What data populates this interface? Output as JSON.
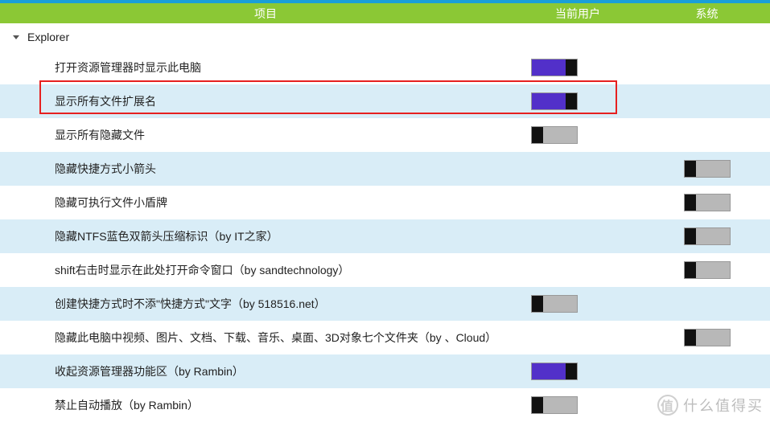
{
  "header": {
    "item": "项目",
    "currentUser": "当前用户",
    "system": "系统"
  },
  "group": {
    "name": "Explorer",
    "expanded": true
  },
  "rows": [
    {
      "label": "打开资源管理器时显示此电脑",
      "user": "on",
      "system": null,
      "alt": false
    },
    {
      "label": "显示所有文件扩展名",
      "user": "on",
      "system": null,
      "alt": true
    },
    {
      "label": "显示所有隐藏文件",
      "user": "off",
      "system": null,
      "alt": false
    },
    {
      "label": "隐藏快捷方式小箭头",
      "user": null,
      "system": "off",
      "alt": true
    },
    {
      "label": "隐藏可执行文件小盾牌",
      "user": null,
      "system": "off",
      "alt": false
    },
    {
      "label": "隐藏NTFS蓝色双箭头压缩标识（by IT之家）",
      "user": null,
      "system": "off",
      "alt": true
    },
    {
      "label": "shift右击时显示在此处打开命令窗口（by sandtechnology）",
      "user": null,
      "system": "off",
      "alt": false
    },
    {
      "label": "创建快捷方式时不添\"快捷方式\"文字（by 518516.net）",
      "user": "off",
      "system": null,
      "alt": true
    },
    {
      "label": "隐藏此电脑中视频、图片、文档、下载、音乐、桌面、3D对象七个文件夹（by 、Cloud）",
      "user": null,
      "system": "off",
      "alt": false
    },
    {
      "label": "收起资源管理器功能区（by Rambin）",
      "user": "on",
      "system": null,
      "alt": true
    },
    {
      "label": "禁止自动播放（by Rambin）",
      "user": "off",
      "system": null,
      "alt": false
    }
  ],
  "highlight": {
    "rowIndex": 1,
    "leftPx": 49,
    "topOffsetPx": -5,
    "widthPx": 718,
    "heightPx": 42
  },
  "watermark": {
    "icon": "值",
    "text": "什么值得买"
  },
  "colors": {
    "topbar": "#1a9fd8",
    "headerBg": "#8bc835",
    "altRow": "#d9edf7",
    "toggleOn": "#5230c9",
    "toggleOff": "#b8b8b8",
    "highlightBorder": "#e62020"
  }
}
